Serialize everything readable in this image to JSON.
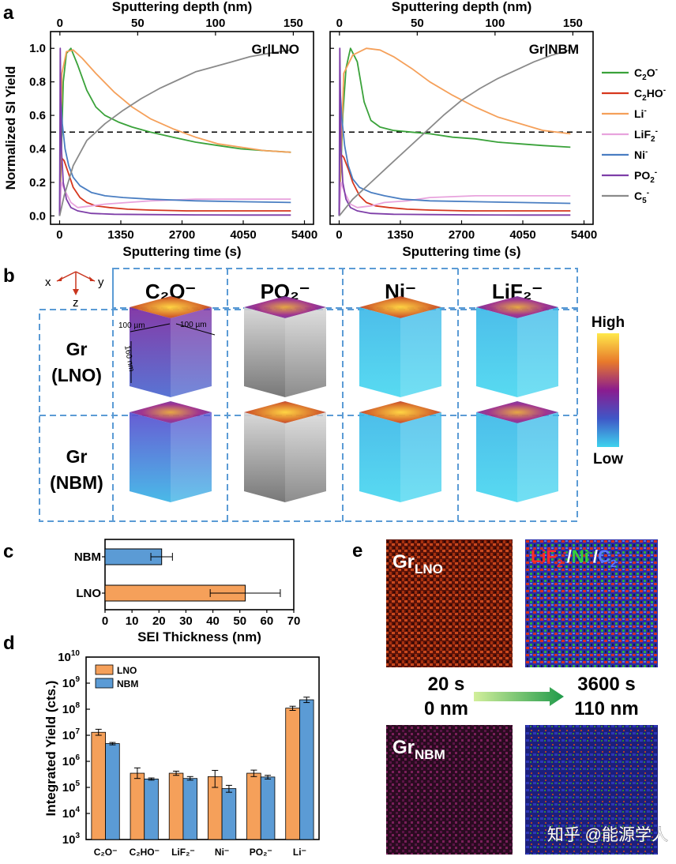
{
  "panel_labels": {
    "a": "a",
    "b": "b",
    "c": "c",
    "d": "d",
    "e": "e"
  },
  "chart_data": [
    {
      "id": "a-left",
      "type": "line",
      "title": "Gr|LNO",
      "xlabel": "Sputtering time (s)",
      "ylabel": "Normalized SI Yield",
      "x2label": "Sputtering depth (nm)",
      "xlim": [
        -200,
        5600
      ],
      "ylim": [
        -0.05,
        1.1
      ],
      "x2lim": [
        -6,
        163
      ],
      "xticks": [
        0,
        1350,
        2700,
        4050,
        5400
      ],
      "xtick_labels": [
        "0",
        "1350",
        "2700",
        "4050",
        "5400"
      ],
      "yticks": [
        0.0,
        0.2,
        0.4,
        0.6,
        0.8,
        1.0
      ],
      "ytick_labels": [
        "0.0",
        "0.2",
        "0.4",
        "0.6",
        "0.8",
        "1.0"
      ],
      "x2ticks": [
        0,
        50,
        100,
        150
      ],
      "x2tick_labels": [
        "0",
        "50",
        "100",
        "150"
      ],
      "hline": 0.5,
      "series": [
        {
          "name": "C2O-",
          "color": "#3aa23a",
          "x": [
            0,
            80,
            150,
            250,
            400,
            600,
            800,
            1000,
            1300,
            1600,
            2000,
            2500,
            3000,
            3500,
            4000,
            4500,
            5100
          ],
          "y": [
            0.0,
            0.8,
            0.97,
            1.0,
            0.9,
            0.75,
            0.65,
            0.6,
            0.56,
            0.53,
            0.5,
            0.47,
            0.44,
            0.42,
            0.4,
            0.39,
            0.38
          ]
        },
        {
          "name": "C2HO-",
          "color": "#d6371e",
          "x": [
            0,
            30,
            100,
            200,
            300,
            450,
            600,
            800,
            1100,
            1500,
            2000,
            2800,
            3600,
            4400,
            5100
          ],
          "y": [
            0.0,
            0.35,
            0.33,
            0.25,
            0.17,
            0.11,
            0.08,
            0.06,
            0.05,
            0.04,
            0.035,
            0.03,
            0.03,
            0.03,
            0.03
          ]
        },
        {
          "name": "Li-",
          "color": "#f5a05a",
          "x": [
            0,
            50,
            150,
            300,
            500,
            800,
            1200,
            1600,
            2000,
            2500,
            3000,
            3500,
            4000,
            4500,
            5100
          ],
          "y": [
            0.0,
            0.85,
            0.98,
            0.99,
            0.94,
            0.85,
            0.74,
            0.65,
            0.58,
            0.52,
            0.47,
            0.43,
            0.41,
            0.39,
            0.38
          ]
        },
        {
          "name": "LiF2-",
          "color": "#e8a3dd",
          "x": [
            0,
            40,
            120,
            250,
            400,
            700,
            1000,
            1500,
            2000,
            3000,
            4000,
            5100
          ],
          "y": [
            0.0,
            0.2,
            0.15,
            0.08,
            0.05,
            0.06,
            0.07,
            0.08,
            0.09,
            0.1,
            0.1,
            0.1
          ]
        },
        {
          "name": "Ni-",
          "color": "#4a7ec2",
          "x": [
            0,
            20,
            60,
            120,
            200,
            300,
            450,
            700,
            1000,
            1400,
            2000,
            3000,
            4000,
            5100
          ],
          "y": [
            0.0,
            0.72,
            0.55,
            0.4,
            0.3,
            0.23,
            0.18,
            0.14,
            0.12,
            0.11,
            0.1,
            0.09,
            0.085,
            0.08
          ]
        },
        {
          "name": "PO2-",
          "color": "#7e3ea8",
          "x": [
            0,
            15,
            40,
            80,
            150,
            250,
            400,
            700,
            1200,
            2000,
            3000,
            4000,
            5100
          ],
          "y": [
            0.0,
            1.0,
            0.4,
            0.2,
            0.1,
            0.05,
            0.03,
            0.015,
            0.01,
            0.008,
            0.006,
            0.005,
            0.005
          ]
        },
        {
          "name": "C5-",
          "color": "#8a8a8a",
          "x": [
            0,
            100,
            300,
            600,
            1000,
            1400,
            1800,
            2200,
            2600,
            3000,
            3400,
            3800,
            4200,
            4600,
            5100
          ],
          "y": [
            0.0,
            0.12,
            0.3,
            0.45,
            0.55,
            0.63,
            0.7,
            0.76,
            0.81,
            0.86,
            0.89,
            0.92,
            0.95,
            0.97,
            0.99
          ]
        }
      ]
    },
    {
      "id": "a-right",
      "type": "line",
      "title": "Gr|NBM",
      "xlabel": "Sputtering time (s)",
      "x2label": "Sputtering depth (nm)",
      "xlim": [
        -200,
        5600
      ],
      "ylim": [
        -0.05,
        1.1
      ],
      "x2lim": [
        -6,
        163
      ],
      "xticks": [
        0,
        1350,
        2700,
        4050,
        5400
      ],
      "xtick_labels": [
        "0",
        "1350",
        "2700",
        "4050",
        "5400"
      ],
      "x2ticks": [
        0,
        50,
        100,
        150
      ],
      "x2tick_labels": [
        "0",
        "50",
        "100",
        "150"
      ],
      "hline": 0.5,
      "series": [
        {
          "name": "C2O-",
          "color": "#3aa23a",
          "x": [
            0,
            80,
            150,
            250,
            400,
            550,
            700,
            900,
            1200,
            1600,
            2000,
            2500,
            3000,
            3500,
            4000,
            4500,
            5100
          ],
          "y": [
            0.0,
            0.6,
            0.88,
            1.0,
            0.92,
            0.68,
            0.57,
            0.53,
            0.51,
            0.5,
            0.49,
            0.47,
            0.46,
            0.44,
            0.43,
            0.42,
            0.41
          ]
        },
        {
          "name": "C2HO-",
          "color": "#d6371e",
          "x": [
            0,
            30,
            100,
            200,
            300,
            450,
            600,
            800,
            1100,
            1500,
            2000,
            2800,
            3600,
            4400,
            5100
          ],
          "y": [
            0.0,
            0.37,
            0.35,
            0.28,
            0.2,
            0.12,
            0.08,
            0.06,
            0.05,
            0.04,
            0.035,
            0.03,
            0.03,
            0.03,
            0.03
          ]
        },
        {
          "name": "Li-",
          "color": "#f5a05a",
          "x": [
            0,
            100,
            300,
            600,
            900,
            1200,
            1600,
            2000,
            2500,
            3000,
            3500,
            4000,
            4500,
            5100
          ],
          "y": [
            0.0,
            0.85,
            0.96,
            1.0,
            0.99,
            0.95,
            0.88,
            0.8,
            0.72,
            0.65,
            0.59,
            0.55,
            0.51,
            0.49
          ]
        },
        {
          "name": "LiF2-",
          "color": "#e8a3dd",
          "x": [
            0,
            40,
            120,
            250,
            400,
            700,
            1000,
            1500,
            2000,
            3000,
            4000,
            5100
          ],
          "y": [
            0.0,
            0.2,
            0.14,
            0.07,
            0.05,
            0.06,
            0.08,
            0.09,
            0.11,
            0.12,
            0.12,
            0.12
          ]
        },
        {
          "name": "Ni-",
          "color": "#4a7ec2",
          "x": [
            0,
            20,
            60,
            120,
            200,
            300,
            450,
            700,
            1000,
            1400,
            2000,
            3000,
            4000,
            5100
          ],
          "y": [
            0.0,
            0.76,
            0.58,
            0.42,
            0.3,
            0.22,
            0.17,
            0.14,
            0.12,
            0.1,
            0.09,
            0.085,
            0.08,
            0.075
          ]
        },
        {
          "name": "PO2-",
          "color": "#7e3ea8",
          "x": [
            0,
            15,
            40,
            80,
            150,
            250,
            400,
            700,
            1200,
            2000,
            3000,
            4000,
            5100
          ],
          "y": [
            0.0,
            1.0,
            0.4,
            0.2,
            0.1,
            0.05,
            0.03,
            0.015,
            0.01,
            0.008,
            0.006,
            0.005,
            0.005
          ]
        },
        {
          "name": "C5-",
          "color": "#8a8a8a",
          "x": [
            0,
            300,
            700,
            1100,
            1500,
            1900,
            2300,
            2700,
            3100,
            3500,
            3900,
            4300,
            4700,
            5100
          ],
          "y": [
            0.0,
            0.1,
            0.2,
            0.3,
            0.4,
            0.5,
            0.6,
            0.69,
            0.76,
            0.82,
            0.87,
            0.92,
            0.96,
            0.99
          ]
        }
      ]
    },
    {
      "id": "c",
      "type": "bar",
      "orientation": "horizontal",
      "xlabel": "SEI Thickness (nm)",
      "categories": [
        "NBM",
        "LNO"
      ],
      "values": [
        21,
        52
      ],
      "errors": [
        4,
        13
      ],
      "colors": [
        "#5b9bd5",
        "#f5a05a"
      ],
      "xlim": [
        0,
        70
      ],
      "xticks": [
        0,
        10,
        20,
        30,
        40,
        50,
        60,
        70
      ],
      "xtick_labels": [
        "0",
        "10",
        "20",
        "30",
        "40",
        "50",
        "60",
        "70"
      ]
    },
    {
      "id": "d",
      "type": "bar",
      "yscale": "log",
      "ylabel": "Integrated Yield (cts.)",
      "categories": [
        "C₂O⁻",
        "C₂HO⁻",
        "LiF₂⁻",
        "Ni⁻",
        "PO₂⁻",
        "Li⁻"
      ],
      "ylim_exp": [
        3,
        10
      ],
      "ytick_exps": [
        "3",
        "4",
        "5",
        "6",
        "7",
        "8",
        "9",
        "10"
      ],
      "ytick_base": "10",
      "series": [
        {
          "name": "LNO",
          "color": "#f5a05a",
          "values": [
            13000000,
            350000,
            350000,
            260000,
            350000,
            110000000
          ],
          "errors_hi": [
            17000000,
            560000,
            420000,
            450000,
            460000,
            130000000
          ],
          "errors_lo": [
            10000000,
            220000,
            290000,
            100000,
            260000,
            90000000
          ]
        },
        {
          "name": "NBM",
          "color": "#5b9bd5",
          "values": [
            4800000,
            210000,
            220000,
            90000,
            250000,
            230000000
          ],
          "errors_hi": [
            5300000,
            230000,
            260000,
            120000,
            290000,
            290000000
          ],
          "errors_lo": [
            4300000,
            190000,
            190000,
            65000,
            210000,
            180000000
          ]
        }
      ]
    }
  ],
  "legend_a": [
    {
      "name": "C2O-",
      "base": "C",
      "sub1": "2",
      "mid": "O",
      "sup": "-",
      "sub2": "",
      "color": "#3aa23a"
    },
    {
      "name": "C2HO-",
      "base": "C",
      "sub1": "2",
      "mid": "HO",
      "sup": "-",
      "sub2": "",
      "color": "#d6371e"
    },
    {
      "name": "Li-",
      "base": "Li",
      "sub1": "",
      "mid": "",
      "sup": "-",
      "sub2": "",
      "color": "#f5a05a"
    },
    {
      "name": "LiF2-",
      "base": "LiF",
      "sub1": "2",
      "mid": "",
      "sup": "-",
      "sub2": "",
      "color": "#e8a3dd"
    },
    {
      "name": "Ni-",
      "base": "Ni",
      "sub1": "",
      "mid": "",
      "sup": "-",
      "sub2": "",
      "color": "#4a7ec2"
    },
    {
      "name": "PO2-",
      "base": "PO",
      "sub1": "2",
      "mid": "",
      "sup": "-",
      "sub2": "",
      "color": "#7e3ea8"
    },
    {
      "name": "C5-",
      "base": "C",
      "sub1": "5",
      "mid": "",
      "sup": "-",
      "sub2": "",
      "color": "#8a8a8a"
    }
  ],
  "panel_b": {
    "axes": {
      "x": "x",
      "y": "y",
      "z": "z"
    },
    "columns": [
      "C₂O⁻",
      "PO₂⁻",
      "Ni⁻",
      "LiF₂⁻"
    ],
    "rows": [
      {
        "line1": "Gr",
        "line2": "(LNO)"
      },
      {
        "line1": "Gr",
        "line2": "(NBM)"
      }
    ],
    "dims": {
      "w1": "100 µm",
      "w2": "100 µm",
      "h": "160 nm"
    },
    "colorbar": {
      "high": "High",
      "low": "Low"
    }
  },
  "panel_e": {
    "img_labels": {
      "lno_main": "Gr",
      "lno_sub": "LNO",
      "nbm_main": "Gr",
      "nbm_sub": "NBM"
    },
    "overlay_legend": [
      {
        "text": "LiF",
        "sub": "2",
        "sup": "-",
        "color": "#ff2a2a"
      },
      {
        "text": "/",
        "color": "#ffffff"
      },
      {
        "text": "Ni",
        "sup": "-",
        "color": "#35d13a"
      },
      {
        "text": "/",
        "color": "#ffffff"
      },
      {
        "text": "C",
        "sub": "2",
        "sup": "-",
        "color": "#5a78ff"
      }
    ],
    "start": {
      "time": "20 s",
      "depth": "0 nm"
    },
    "end": {
      "time": "3600 s",
      "depth": "110 nm"
    }
  },
  "watermark": "知乎 @能源学人"
}
